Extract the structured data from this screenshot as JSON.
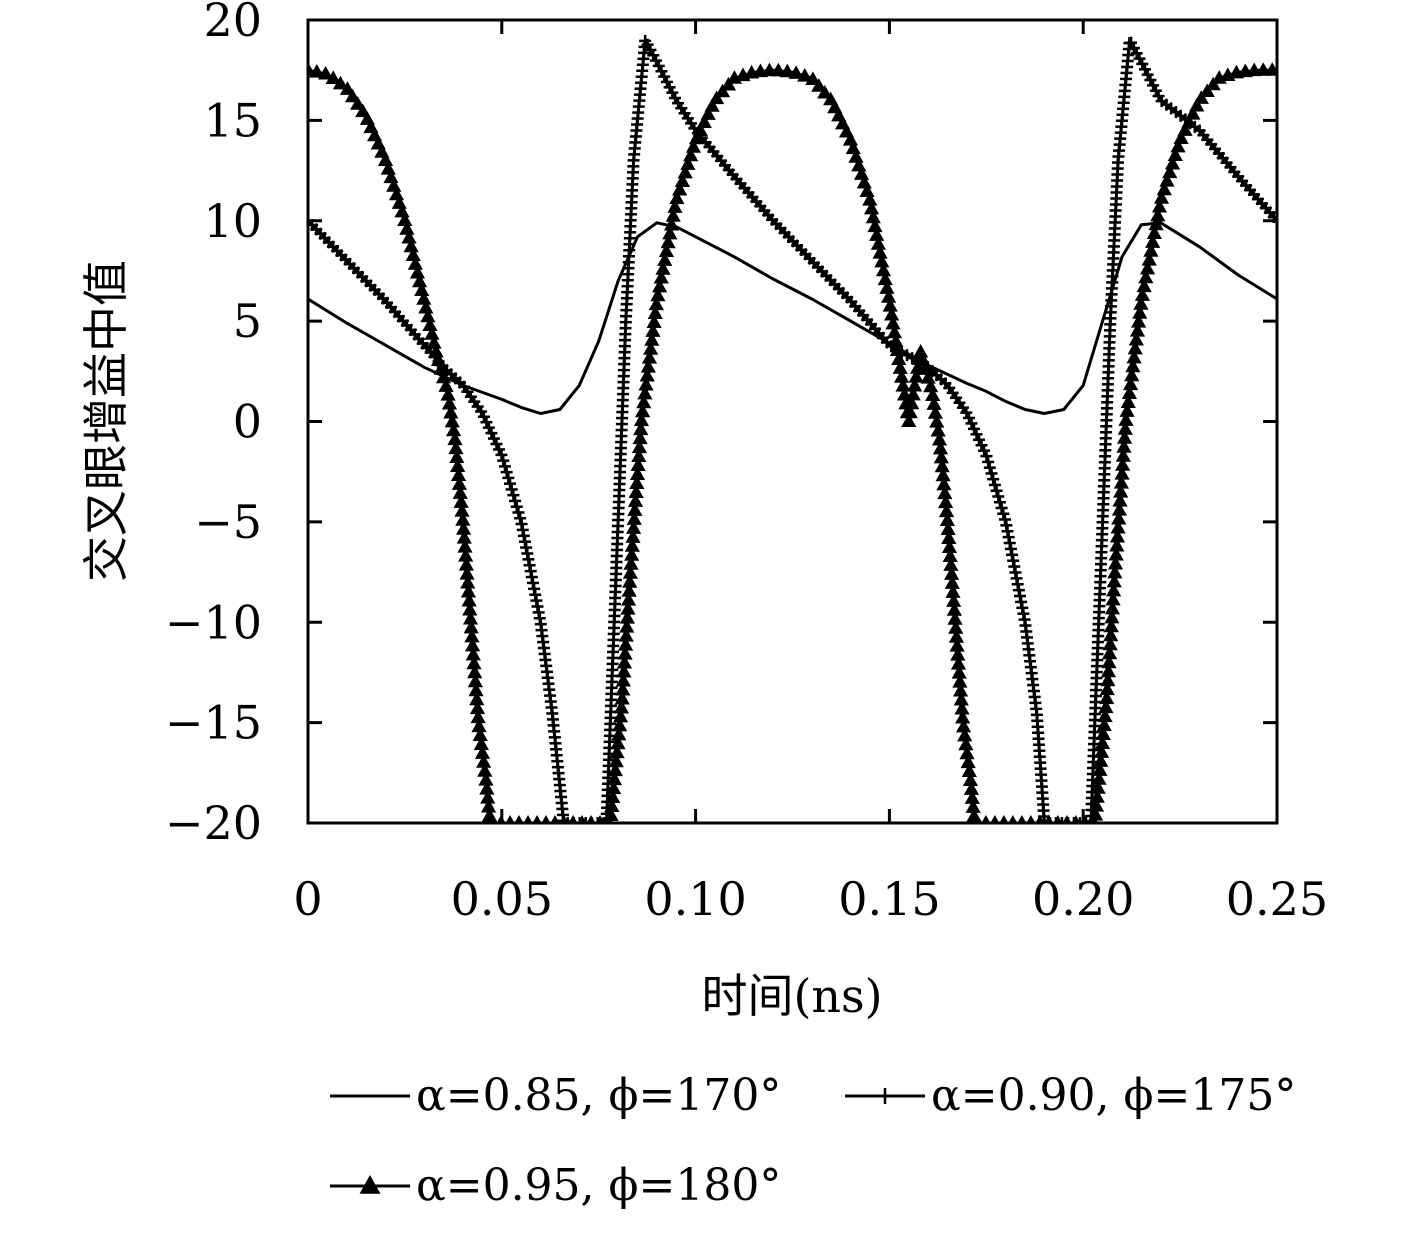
{
  "chart_data": {
    "type": "line",
    "xlabel": "时间(ns)",
    "ylabel": "交叉眼增益中值",
    "xlim": [
      0,
      0.25
    ],
    "ylim": [
      -20,
      20
    ],
    "x_ticks": [
      0,
      0.05,
      0.1,
      0.15,
      0.2,
      0.25
    ],
    "x_tick_labels": [
      "0",
      "0.05",
      "0.10",
      "0.15",
      "0.20",
      "0.25"
    ],
    "y_ticks": [
      -20,
      -15,
      -10,
      -5,
      0,
      5,
      10,
      15,
      20
    ],
    "y_tick_labels": [
      "−20",
      "−15",
      "−10",
      "−5",
      "0",
      "5",
      "10",
      "15",
      "20"
    ],
    "grid": false,
    "legend_position": "bottom",
    "series": [
      {
        "name": "α=0.85, ϕ=170°",
        "marker": "none",
        "color": "#000000",
        "x": [
          0,
          0.01,
          0.02,
          0.03,
          0.04,
          0.05,
          0.055,
          0.06,
          0.065,
          0.07,
          0.075,
          0.08,
          0.085,
          0.09,
          0.095,
          0.1,
          0.11,
          0.12,
          0.13,
          0.14,
          0.15,
          0.16,
          0.17,
          0.175,
          0.18,
          0.185,
          0.19,
          0.195,
          0.2,
          0.205,
          0.21,
          0.215,
          0.22,
          0.23,
          0.24,
          0.25
        ],
        "y": [
          6.1,
          4.9,
          3.8,
          2.7,
          1.8,
          1.1,
          0.7,
          0.4,
          0.6,
          1.8,
          4.0,
          7.0,
          9.2,
          9.9,
          9.7,
          9.2,
          8.2,
          7.1,
          6.1,
          5.0,
          3.9,
          2.8,
          1.9,
          1.5,
          1.0,
          0.6,
          0.4,
          0.6,
          1.8,
          5.0,
          8.2,
          9.8,
          9.9,
          8.7,
          7.3,
          6.1
        ]
      },
      {
        "name": "α=0.90, ϕ=175°",
        "marker": "plus",
        "color": "#000000",
        "x": [
          0,
          0.01,
          0.02,
          0.03,
          0.035,
          0.04,
          0.045,
          0.05,
          0.055,
          0.06,
          0.063,
          0.066,
          0.077,
          0.078,
          0.08,
          0.082,
          0.084,
          0.087,
          0.09,
          0.095,
          0.1,
          0.11,
          0.12,
          0.13,
          0.14,
          0.15,
          0.16,
          0.165,
          0.17,
          0.175,
          0.18,
          0.185,
          0.188,
          0.19,
          0.202,
          0.203,
          0.205,
          0.207,
          0.209,
          0.212,
          0.215,
          0.22,
          0.23,
          0.24,
          0.25
        ],
        "y": [
          10.0,
          8.0,
          6.0,
          3.8,
          2.7,
          1.8,
          0.4,
          -1.7,
          -5.0,
          -10.0,
          -14.5,
          -20.0,
          -20.0,
          -15.0,
          -5.0,
          5.0,
          13.0,
          19.0,
          17.9,
          16.0,
          14.5,
          12.2,
          10.0,
          8.0,
          6.0,
          3.8,
          2.7,
          1.8,
          0.4,
          -1.7,
          -5.0,
          -10.0,
          -14.5,
          -20.0,
          -20.0,
          -15.0,
          -5.0,
          5.0,
          13.0,
          19.0,
          17.9,
          16.0,
          14.5,
          12.2,
          10.0
        ]
      },
      {
        "name": "α=0.95, ϕ=180°",
        "marker": "triangle",
        "color": "#000000",
        "x": [
          0,
          0.005,
          0.01,
          0.015,
          0.02,
          0.025,
          0.03,
          0.033,
          0.036,
          0.038,
          0.04,
          0.042,
          0.044,
          0.046,
          0.047,
          0.078,
          0.079,
          0.081,
          0.083,
          0.086,
          0.09,
          0.095,
          0.1,
          0.105,
          0.11,
          0.115,
          0.12,
          0.125,
          0.13,
          0.135,
          0.14,
          0.145,
          0.15,
          0.155,
          0.158,
          0.161,
          0.163,
          0.165,
          0.167,
          0.169,
          0.171,
          0.172,
          0.203,
          0.204,
          0.206,
          0.208,
          0.211,
          0.215,
          0.22,
          0.225,
          0.23,
          0.235,
          0.24,
          0.245,
          0.25
        ],
        "y": [
          17.5,
          17.3,
          16.6,
          15.2,
          13.0,
          10.0,
          6.0,
          3.5,
          1.5,
          -1.0,
          -5.0,
          -10.0,
          -15.0,
          -18.0,
          -20.0,
          -20.0,
          -18.0,
          -14.0,
          -8.0,
          0.0,
          6.0,
          11.0,
          14.0,
          16.0,
          17.1,
          17.4,
          17.5,
          17.4,
          17.1,
          16.0,
          14.0,
          11.0,
          6.0,
          0.0,
          3.5,
          1.5,
          -1.0,
          -5.0,
          -10.0,
          -15.0,
          -18.0,
          -20.0,
          -20.0,
          -18.0,
          -14.0,
          -8.0,
          0.0,
          6.0,
          11.0,
          14.0,
          16.0,
          17.1,
          17.4,
          17.5,
          17.5
        ]
      }
    ]
  }
}
